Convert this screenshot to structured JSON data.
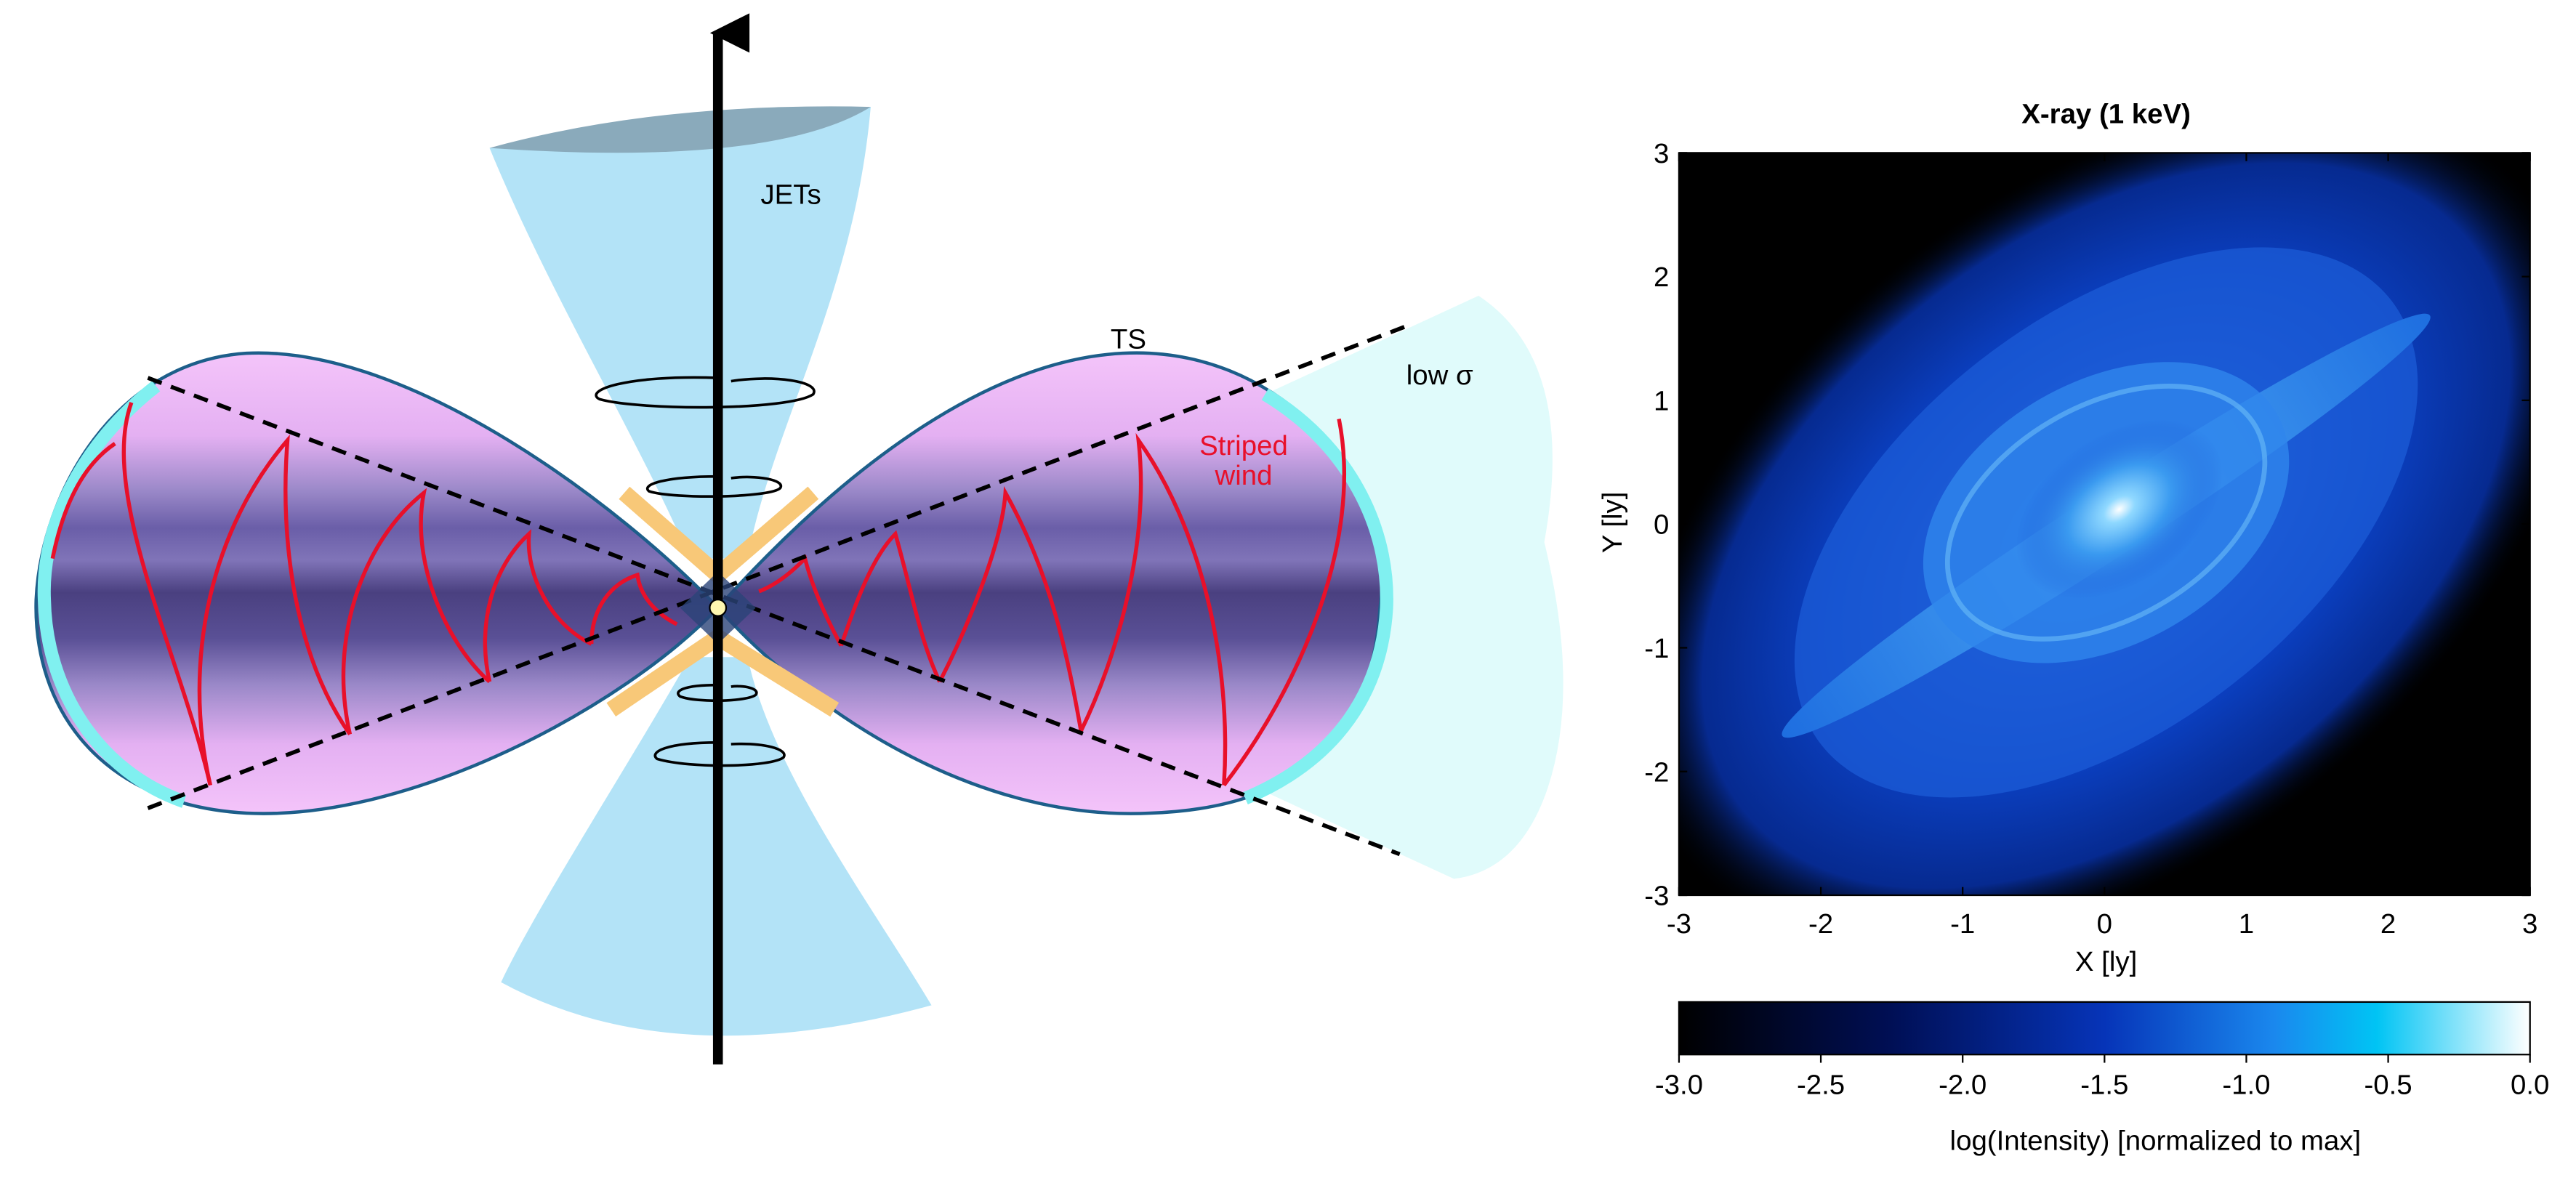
{
  "diagram": {
    "labels": {
      "jets": "JETs",
      "ts": "TS",
      "low_sigma": "low σ",
      "striped_wind": [
        "Striped",
        "wind"
      ]
    }
  },
  "chart_data": {
    "type": "image",
    "title": "X-ray (1 keV)",
    "x_label": "X [ly]",
    "y_label": "Y [ly]",
    "xlim": [
      -3,
      3
    ],
    "ylim": [
      -3,
      3
    ],
    "xticks": [
      -3,
      -2,
      -1,
      0,
      1,
      2,
      3
    ],
    "yticks": [
      -3,
      -2,
      -1,
      0,
      1,
      2,
      3
    ],
    "colorbar": {
      "label": "log(Intensity) [normalized to max]",
      "lim": [
        -3,
        0
      ],
      "ticks": [
        {
          "value": -3,
          "label": "-3.0"
        },
        {
          "value": -2.5,
          "label": "-2.5"
        },
        {
          "value": -2,
          "label": "-2.0"
        },
        {
          "value": -1.5,
          "label": "-1.5"
        },
        {
          "value": -1,
          "label": "-1.0"
        },
        {
          "value": -0.5,
          "label": "-0.5"
        },
        {
          "value": 0,
          "label": "0.0"
        }
      ]
    }
  }
}
